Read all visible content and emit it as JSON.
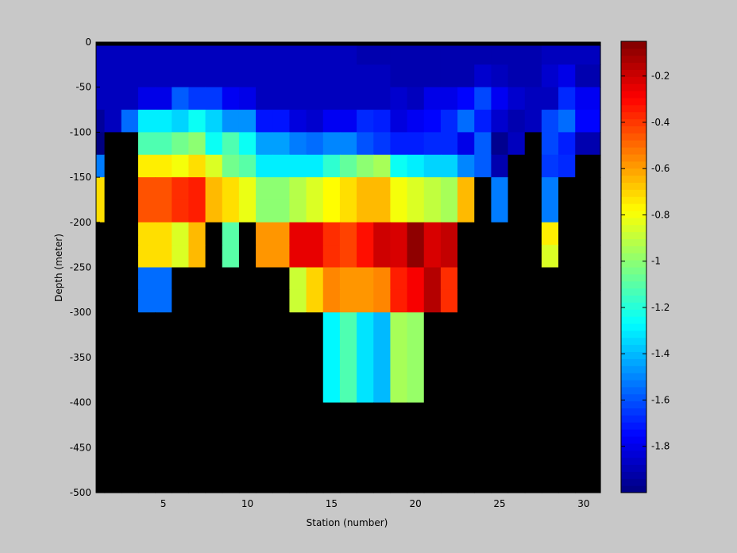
{
  "chart_data": {
    "type": "heatmap",
    "xlabel": "Station (number)",
    "ylabel": "Depth (meter)",
    "xlim": [
      1,
      31
    ],
    "ylim": [
      -500,
      0
    ],
    "xticks": [
      5,
      10,
      15,
      20,
      25,
      30
    ],
    "yticks": [
      0,
      -50,
      -100,
      -150,
      -200,
      -250,
      -300,
      -350,
      -400,
      -450,
      -500
    ],
    "colorbar": {
      "colormap": "jet",
      "clim": [
        -2.0,
        -0.05
      ],
      "ticks": [
        -0.2,
        -0.4,
        -0.6,
        -0.8,
        -1,
        -1.2,
        -1.4,
        -1.6,
        -1.8
      ]
    },
    "mask_color": "#000000",
    "background": "#c8c8c8",
    "stations": [
      1,
      2,
      3,
      4,
      5,
      6,
      7,
      8,
      9,
      10,
      11,
      12,
      13,
      14,
      15,
      16,
      17,
      18,
      19,
      20,
      21,
      22,
      23,
      24,
      25,
      26,
      27,
      28,
      29,
      30
    ],
    "depth_rows": [
      {
        "from": 0,
        "to": -4,
        "values": [
          null,
          null,
          null,
          null,
          null,
          null,
          null,
          null,
          null,
          null,
          null,
          null,
          null,
          null,
          null,
          null,
          null,
          null,
          null,
          null,
          null,
          null,
          null,
          null,
          null,
          null,
          null,
          null,
          null,
          null
        ]
      },
      {
        "from": -4,
        "to": -25,
        "values": [
          -1.88,
          -1.88,
          -1.88,
          -1.88,
          -1.88,
          -1.88,
          -1.88,
          -1.88,
          -1.88,
          -1.88,
          -1.88,
          -1.88,
          -1.88,
          -1.88,
          -1.88,
          -1.88,
          -1.91,
          -1.91,
          -1.91,
          -1.91,
          -1.91,
          -1.91,
          -1.91,
          -1.91,
          -1.91,
          -1.91,
          -1.91,
          -1.88,
          -1.88,
          -1.88
        ]
      },
      {
        "from": -25,
        "to": -50,
        "values": [
          -1.88,
          -1.88,
          -1.88,
          -1.88,
          -1.88,
          -1.88,
          -1.88,
          -1.88,
          -1.88,
          -1.88,
          -1.88,
          -1.88,
          -1.88,
          -1.88,
          -1.88,
          -1.88,
          -1.88,
          -1.88,
          -1.91,
          -1.91,
          -1.91,
          -1.91,
          -1.91,
          -1.85,
          -1.88,
          -1.91,
          -1.91,
          -1.85,
          -1.8,
          -1.91
        ]
      },
      {
        "from": -50,
        "to": -75,
        "values": [
          -1.88,
          -1.88,
          -1.88,
          -1.8,
          -1.8,
          -1.58,
          -1.65,
          -1.65,
          -1.78,
          -1.8,
          -1.88,
          -1.88,
          -1.88,
          -1.88,
          -1.88,
          -1.88,
          -1.88,
          -1.88,
          -1.85,
          -1.88,
          -1.8,
          -1.8,
          -1.75,
          -1.62,
          -1.78,
          -1.85,
          -1.88,
          -1.88,
          -1.68,
          -1.78
        ]
      },
      {
        "from": -75,
        "to": -100,
        "values": [
          -1.95,
          -1.88,
          -1.55,
          -1.3,
          -1.3,
          -1.35,
          -1.25,
          -1.35,
          -1.48,
          -1.48,
          -1.72,
          -1.72,
          -1.82,
          -1.85,
          -1.78,
          -1.78,
          -1.68,
          -1.7,
          -1.82,
          -1.78,
          -1.75,
          -1.68,
          -1.55,
          -1.7,
          -1.85,
          -1.91,
          -1.88,
          -1.62,
          -1.55,
          -1.75
        ]
      },
      {
        "from": -100,
        "to": -125,
        "values": [
          -2.0,
          null,
          null,
          -1.12,
          -1.12,
          -1.05,
          -1.0,
          -1.25,
          -1.12,
          -1.25,
          -1.45,
          -1.45,
          -1.52,
          -1.55,
          -1.5,
          -1.5,
          -1.6,
          -1.65,
          -1.7,
          -1.7,
          -1.68,
          -1.68,
          -1.8,
          -1.58,
          -1.97,
          -1.88,
          null,
          -1.62,
          -1.7,
          -1.91
        ]
      },
      {
        "from": -125,
        "to": -150,
        "values": [
          -1.52,
          null,
          null,
          -0.75,
          -0.75,
          -0.8,
          -0.72,
          -0.85,
          -1.05,
          -1.1,
          -1.3,
          -1.3,
          -1.3,
          -1.3,
          -1.18,
          -1.08,
          -1.0,
          -0.95,
          -1.25,
          -1.3,
          -1.35,
          -1.35,
          -1.5,
          -1.58,
          -1.91,
          null,
          null,
          -1.65,
          -1.68,
          null
        ]
      },
      {
        "from": -150,
        "to": -175,
        "values": [
          -0.72,
          null,
          null,
          -0.45,
          -0.45,
          -0.38,
          -0.35,
          -0.65,
          -0.72,
          -0.82,
          -1.0,
          -1.0,
          -0.92,
          -0.85,
          -0.78,
          -0.72,
          -0.65,
          -0.65,
          -0.8,
          -0.85,
          -0.9,
          -0.95,
          -0.65,
          null,
          -1.52,
          null,
          null,
          -1.52,
          null,
          null
        ]
      },
      {
        "from": -175,
        "to": -200,
        "values": [
          -0.72,
          null,
          null,
          -0.45,
          -0.45,
          -0.38,
          -0.35,
          -0.65,
          -0.72,
          -0.82,
          -1.0,
          -1.0,
          -0.92,
          -0.85,
          -0.78,
          -0.72,
          -0.65,
          -0.65,
          -0.8,
          -0.85,
          -0.9,
          -0.95,
          -0.65,
          null,
          -1.52,
          null,
          null,
          -1.52,
          null,
          null
        ]
      },
      {
        "from": -200,
        "to": -225,
        "values": [
          null,
          null,
          null,
          -0.72,
          -0.72,
          -0.85,
          -0.65,
          null,
          -1.1,
          null,
          -0.58,
          -0.58,
          -0.25,
          -0.25,
          -0.38,
          -0.42,
          -0.32,
          -0.2,
          -0.22,
          -0.08,
          -0.22,
          -0.18,
          null,
          null,
          null,
          null,
          null,
          -0.75,
          null,
          null
        ]
      },
      {
        "from": -225,
        "to": -250,
        "values": [
          null,
          null,
          null,
          -0.72,
          -0.72,
          -0.85,
          -0.65,
          null,
          -1.1,
          null,
          -0.58,
          -0.58,
          -0.25,
          -0.25,
          -0.38,
          -0.42,
          -0.32,
          -0.2,
          -0.22,
          -0.08,
          -0.22,
          -0.18,
          null,
          null,
          null,
          null,
          null,
          -0.85,
          null,
          null
        ]
      },
      {
        "from": -250,
        "to": -275,
        "values": [
          null,
          null,
          null,
          -1.55,
          -1.55,
          null,
          null,
          null,
          null,
          null,
          null,
          null,
          -0.88,
          -0.7,
          -0.55,
          -0.58,
          -0.58,
          -0.55,
          -0.35,
          -0.28,
          -0.15,
          -0.38,
          null,
          null,
          null,
          null,
          null,
          null,
          null,
          null
        ]
      },
      {
        "from": -275,
        "to": -300,
        "values": [
          null,
          null,
          null,
          -1.55,
          -1.55,
          null,
          null,
          null,
          null,
          null,
          null,
          null,
          -0.88,
          -0.7,
          -0.55,
          -0.58,
          -0.58,
          -0.55,
          -0.35,
          -0.28,
          -0.15,
          -0.38,
          null,
          null,
          null,
          null,
          null,
          null,
          null,
          null
        ]
      },
      {
        "from": -300,
        "to": -400,
        "values": [
          null,
          null,
          null,
          null,
          null,
          null,
          null,
          null,
          null,
          null,
          null,
          null,
          null,
          null,
          -1.28,
          -1.12,
          -1.32,
          -1.4,
          -0.95,
          -0.98,
          null,
          null,
          null,
          null,
          null,
          null,
          null,
          null,
          null,
          null
        ]
      },
      {
        "from": -400,
        "to": -500,
        "values": [
          null,
          null,
          null,
          null,
          null,
          null,
          null,
          null,
          null,
          null,
          null,
          null,
          null,
          null,
          null,
          null,
          null,
          null,
          null,
          null,
          null,
          null,
          null,
          null,
          null,
          null,
          null,
          null,
          null,
          null
        ]
      }
    ]
  }
}
